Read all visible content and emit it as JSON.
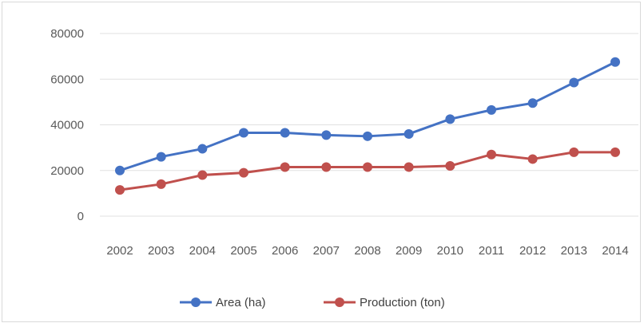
{
  "chart_data": {
    "type": "line",
    "x": [
      "2002",
      "2003",
      "2004",
      "2005",
      "2006",
      "2007",
      "2008",
      "2009",
      "2010",
      "2011",
      "2012",
      "2013",
      "2014"
    ],
    "y_ticks": [
      "0",
      "20000",
      "40000",
      "60000",
      "80000"
    ],
    "ylim": [
      0,
      80000
    ],
    "grid": true,
    "legend_position": "bottom",
    "series": [
      {
        "name": "Area (ha)",
        "color": "#4472c4",
        "values": [
          20000,
          26000,
          29500,
          36500,
          36500,
          35500,
          35000,
          36000,
          42500,
          46500,
          49500,
          58500,
          67500
        ]
      },
      {
        "name": "Production (ton)",
        "color": "#c0504d",
        "values": [
          11500,
          14000,
          18000,
          19000,
          21500,
          21500,
          21500,
          21500,
          22000,
          27000,
          25000,
          28000,
          28000
        ]
      }
    ]
  }
}
